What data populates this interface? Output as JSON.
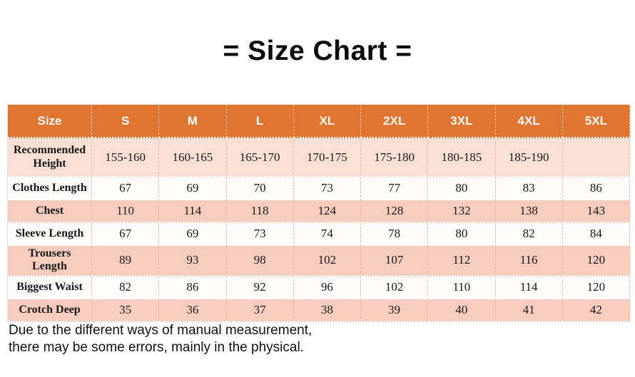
{
  "title": "= Size Chart =",
  "chart_data": {
    "type": "table",
    "title": "= Size Chart =",
    "columns": [
      "Size",
      "S",
      "M",
      "L",
      "XL",
      "2XL",
      "3XL",
      "4XL",
      "5XL"
    ],
    "rows": [
      {
        "label": "Recommended Height",
        "values": [
          "155-160",
          "160-165",
          "165-170",
          "170-175",
          "175-180",
          "180-185",
          "185-190",
          ""
        ]
      },
      {
        "label": "Clothes Length",
        "values": [
          "67",
          "69",
          "70",
          "73",
          "77",
          "80",
          "83",
          "86"
        ]
      },
      {
        "label": "Chest",
        "values": [
          "110",
          "114",
          "118",
          "124",
          "128",
          "132",
          "138",
          "143"
        ]
      },
      {
        "label": "Sleeve Length",
        "values": [
          "67",
          "69",
          "73",
          "74",
          "78",
          "80",
          "82",
          "84"
        ]
      },
      {
        "label": "Trousers Length",
        "values": [
          "89",
          "93",
          "98",
          "102",
          "107",
          "112",
          "116",
          "120"
        ]
      },
      {
        "label": "Biggest Waist",
        "values": [
          "82",
          "86",
          "92",
          "96",
          "102",
          "110",
          "114",
          "120"
        ]
      },
      {
        "label": "Crotch Deep",
        "values": [
          "35",
          "36",
          "37",
          "38",
          "39",
          "40",
          "41",
          "42"
        ]
      }
    ]
  },
  "footer": {
    "line1": "Due to the different ways of manual measurement,",
    "line2": "there may be some errors, mainly in the physical."
  },
  "colors": {
    "header_bg": "#df7531",
    "header_text": "#ffffff",
    "row_light_pink": "#fadfd5",
    "row_pink": "#f5ccbd",
    "row_white": "#fdfcfb",
    "title_text": "#0b0b0b"
  }
}
